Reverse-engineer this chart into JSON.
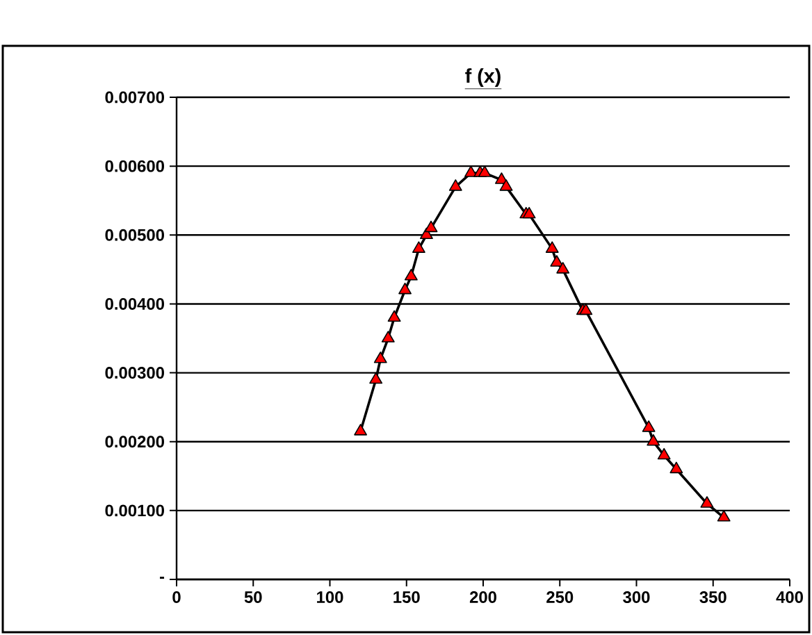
{
  "chart_data": {
    "type": "line",
    "title": "f (x)",
    "marker": "triangle",
    "grid": "y",
    "xlim": [
      0,
      400
    ],
    "xticks": [
      0,
      50,
      100,
      150,
      200,
      250,
      300,
      350,
      400
    ],
    "ylim": [
      0,
      0.007
    ],
    "yticks": [
      {
        "value": 0,
        "label": "-"
      },
      {
        "value": 0.001,
        "label": "0.00100"
      },
      {
        "value": 0.002,
        "label": "0.00200"
      },
      {
        "value": 0.003,
        "label": "0.00300"
      },
      {
        "value": 0.004,
        "label": "0.00400"
      },
      {
        "value": 0.005,
        "label": "0.00500"
      },
      {
        "value": 0.006,
        "label": "0.00600"
      },
      {
        "value": 0.007,
        "label": "0.00700"
      }
    ],
    "series": [
      {
        "color": "#ff0000",
        "x": [
          120,
          130,
          133,
          138,
          142,
          149,
          153,
          158,
          163,
          166,
          182,
          192,
          198,
          201,
          212,
          215,
          228,
          230,
          245,
          248,
          252,
          265,
          267,
          308,
          311,
          318,
          326,
          346,
          357
        ],
        "values": [
          0.00215,
          0.0029,
          0.0032,
          0.0035,
          0.0038,
          0.0042,
          0.0044,
          0.0048,
          0.005,
          0.0051,
          0.0057,
          0.0059,
          0.0059,
          0.0059,
          0.0058,
          0.0057,
          0.0053,
          0.0053,
          0.0048,
          0.0046,
          0.0045,
          0.0039,
          0.0039,
          0.0022,
          0.002,
          0.0018,
          0.0016,
          0.0011,
          0.0009
        ]
      }
    ]
  }
}
